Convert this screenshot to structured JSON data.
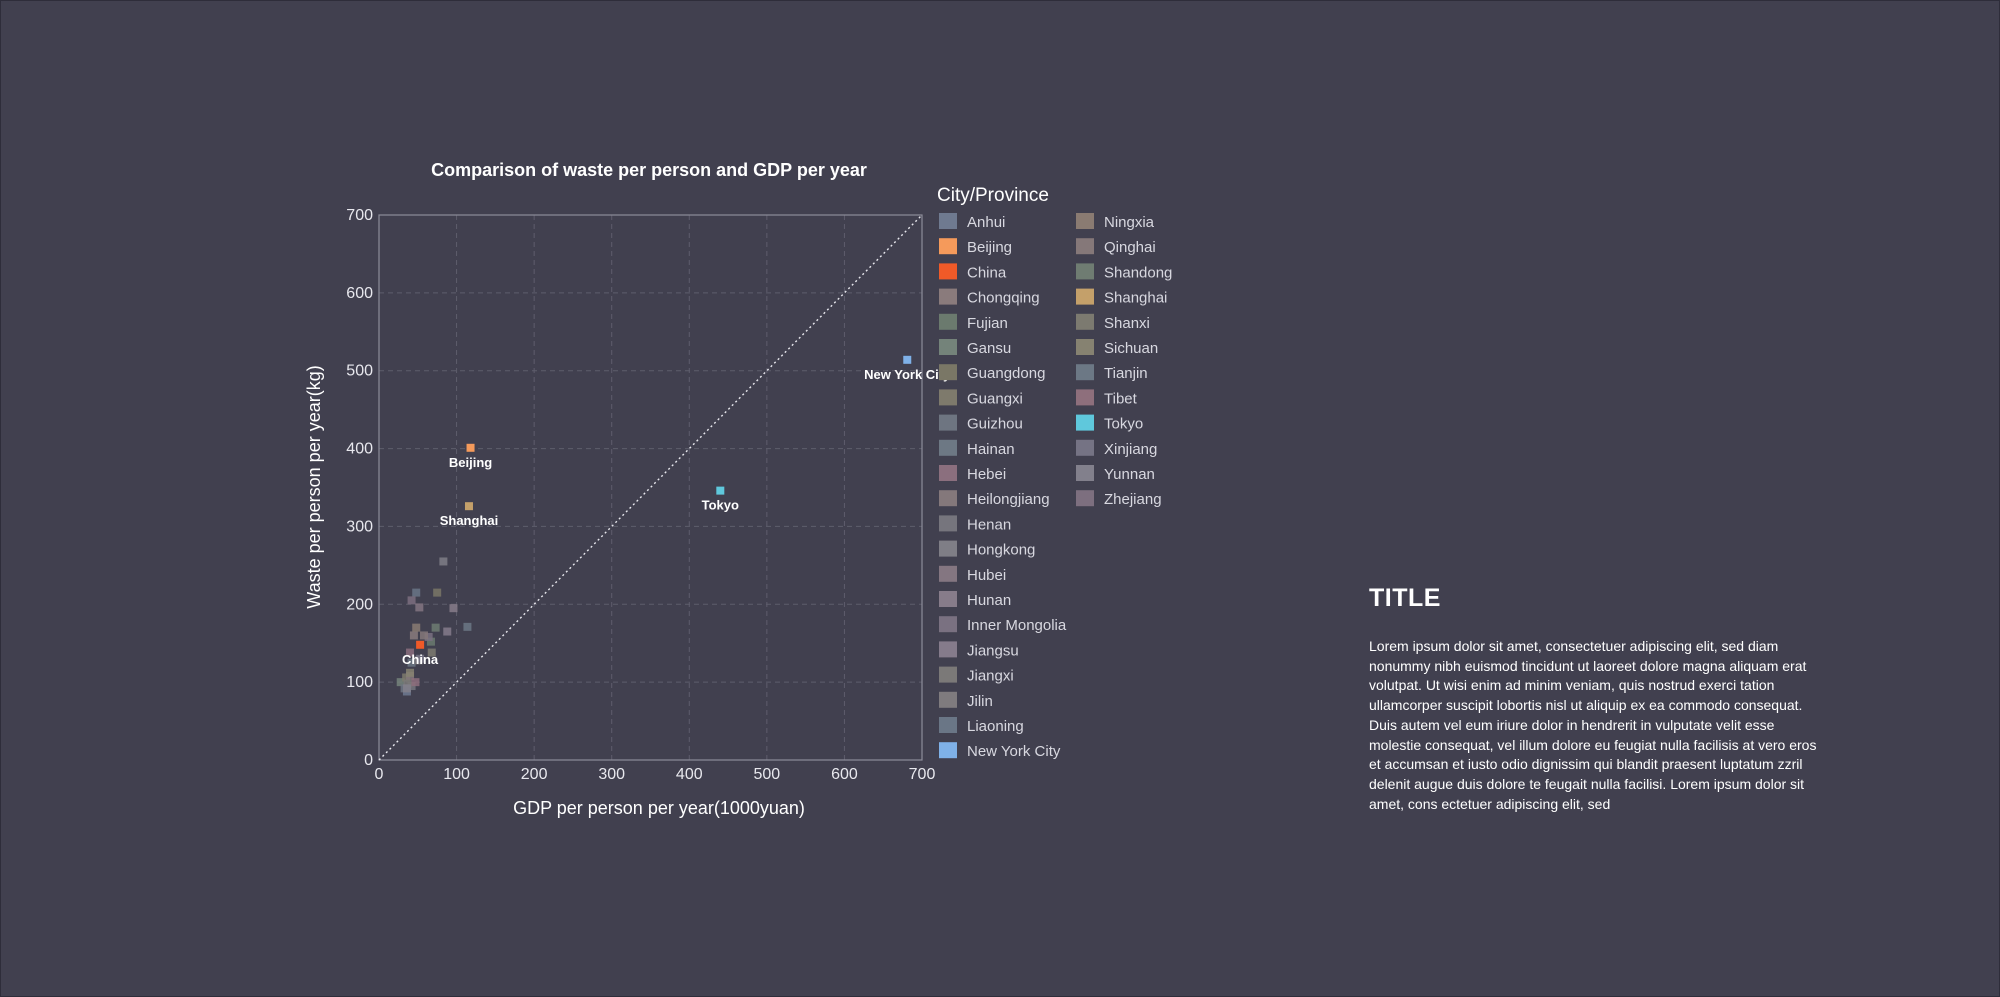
{
  "chart_data": {
    "type": "scatter",
    "title": "Comparison of waste per person and GDP per year",
    "xlabel": "GDP per person per year(1000yuan)",
    "ylabel": "Waste per person per year(kg)",
    "xlim": [
      0,
      700
    ],
    "ylim": [
      0,
      700
    ],
    "xticks": [
      "0",
      "100",
      "200",
      "300",
      "400",
      "500",
      "600",
      "700"
    ],
    "yticks": [
      "0",
      "100",
      "200",
      "300",
      "400",
      "500",
      "600",
      "700"
    ],
    "grid": true,
    "reference_line": "y = x (dotted)",
    "legend_title": "City/Province",
    "legend_position": "right",
    "series": [
      {
        "name": "Anhui",
        "color": "#6f7a90",
        "x": [
          36
        ],
        "y": [
          88
        ]
      },
      {
        "name": "Beijing",
        "color": "#f59a5b",
        "x": [
          118
        ],
        "y": [
          401
        ]
      },
      {
        "name": "China",
        "color": "#f05a28",
        "x": [
          53
        ],
        "y": [
          148
        ]
      },
      {
        "name": "Chongqing",
        "color": "#8a7b7c",
        "x": [
          45
        ],
        "y": [
          160
        ]
      },
      {
        "name": "Fujian",
        "color": "#6b7a6e",
        "x": [
          67
        ],
        "y": [
          152
        ]
      },
      {
        "name": "Gansu",
        "color": "#74837a",
        "x": [
          28
        ],
        "y": [
          100
        ]
      },
      {
        "name": "Guangdong",
        "color": "#7a7766",
        "x": [
          75
        ],
        "y": [
          215
        ]
      },
      {
        "name": "Guangxi",
        "color": "#7e7a6c",
        "x": [
          35
        ],
        "y": [
          106
        ]
      },
      {
        "name": "Guizhou",
        "color": "#6e7581",
        "x": [
          33
        ],
        "y": [
          92
        ]
      },
      {
        "name": "Hainan",
        "color": "#6d7884",
        "x": [
          42
        ],
        "y": [
          125
        ]
      },
      {
        "name": "Hebei",
        "color": "#8b6f7e",
        "x": [
          40
        ],
        "y": [
          138
        ]
      },
      {
        "name": "Heilongjiang",
        "color": "#84787b",
        "x": [
          40
        ],
        "y": [
          108
        ]
      },
      {
        "name": "Henan",
        "color": "#76757d",
        "x": [
          42
        ],
        "y": [
          95
        ]
      },
      {
        "name": "Hongkong",
        "color": "#7f7e86",
        "x": [
          83
        ],
        "y": [
          255
        ]
      },
      {
        "name": "Hubei",
        "color": "#847681",
        "x": [
          52
        ],
        "y": [
          196
        ]
      },
      {
        "name": "Hunan",
        "color": "#877c8a",
        "x": [
          96
        ],
        "y": [
          195
        ]
      },
      {
        "name": "Inner Mongolia",
        "color": "#7a7181",
        "x": [
          64
        ],
        "y": [
          158
        ]
      },
      {
        "name": "Jiangsu",
        "color": "#857b8b",
        "x": [
          88
        ],
        "y": [
          165
        ]
      },
      {
        "name": "Jiangxi",
        "color": "#7b7978",
        "x": [
          37
        ],
        "y": [
          98
        ]
      },
      {
        "name": "Jilin",
        "color": "#7f7b7e",
        "x": [
          51
        ],
        "y": [
          128
        ]
      },
      {
        "name": "Liaoning",
        "color": "#6a7686",
        "x": [
          48
        ],
        "y": [
          215
        ]
      },
      {
        "name": "New York City",
        "color": "#7fb1e8",
        "x": [
          681
        ],
        "y": [
          514
        ]
      },
      {
        "name": "Ningxia",
        "color": "#8a7b72",
        "x": [
          48
        ],
        "y": [
          170
        ]
      },
      {
        "name": "Qinghai",
        "color": "#857879",
        "x": [
          58
        ],
        "y": [
          160
        ]
      },
      {
        "name": "Shandong",
        "color": "#6f7c72",
        "x": [
          73
        ],
        "y": [
          170
        ]
      },
      {
        "name": "Shanghai",
        "color": "#c4a06a",
        "x": [
          116
        ],
        "y": [
          326
        ]
      },
      {
        "name": "Shanxi",
        "color": "#7c7a70",
        "x": [
          68
        ],
        "y": [
          138
        ]
      },
      {
        "name": "Sichuan",
        "color": "#868271",
        "x": [
          40
        ],
        "y": [
          112
        ]
      },
      {
        "name": "Tianjin",
        "color": "#6c7885",
        "x": [
          114
        ],
        "y": [
          171
        ]
      },
      {
        "name": "Tibet",
        "color": "#8e6f7c",
        "x": [
          47
        ],
        "y": [
          100
        ]
      },
      {
        "name": "Tokyo",
        "color": "#5fc8dc",
        "x": [
          440
        ],
        "y": [
          346
        ]
      },
      {
        "name": "Xinjiang",
        "color": "#757384",
        "x": [
          53
        ],
        "y": [
          130
        ]
      },
      {
        "name": "Yunnan",
        "color": "#82808c",
        "x": [
          36
        ],
        "y": [
          92
        ]
      },
      {
        "name": "Zhejiang",
        "color": "#7d6f7f",
        "x": [
          42
        ],
        "y": [
          205
        ]
      }
    ],
    "annotations": [
      {
        "text": "Beijing",
        "x": 118,
        "y": 401
      },
      {
        "text": "Shanghai",
        "x": 116,
        "y": 326
      },
      {
        "text": "China",
        "x": 53,
        "y": 148
      },
      {
        "text": "Tokyo",
        "x": 440,
        "y": 346
      },
      {
        "text": "New York City",
        "x": 681,
        "y": 514
      }
    ]
  },
  "panel": {
    "title": "TITLE",
    "body": "Lorem ipsum dolor sit amet, consectetuer adipiscing elit, sed diam nonummy nibh euismod tincidunt ut laoreet dolore magna aliquam erat volutpat. Ut wisi enim ad minim veniam, quis nostrud exerci tation ullamcorper suscipit lobortis nisl ut aliquip ex ea commodo consequat. Duis autem vel eum iriure dolor in hendrerit in vulputate velit esse molestie consequat, vel illum dolore eu feugiat nulla facilisis at vero eros et accumsan et iusto odio dignissim qui blandit praesent luptatum zzril delenit augue duis dolore te feugait nulla facilisi. Lorem ipsum dolor sit amet, cons ectetuer adipiscing elit, sed"
  }
}
